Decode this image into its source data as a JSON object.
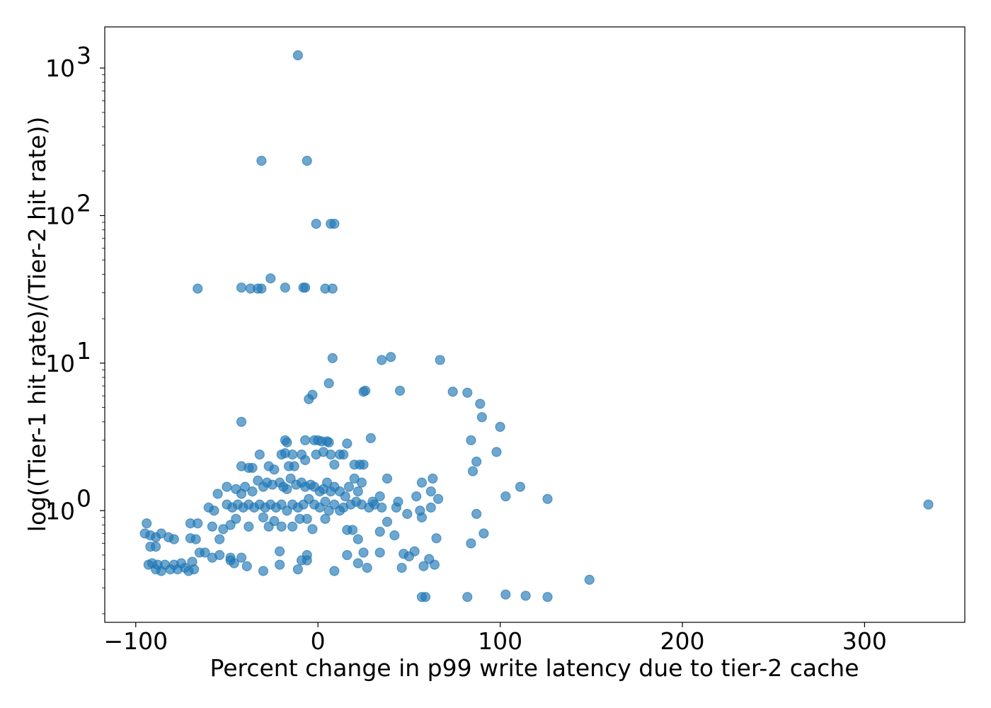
{
  "chart_data": {
    "type": "scatter",
    "xlabel": "Percent change in p99 write latency due to tier-2 cache",
    "ylabel": "log((Tier-1 hit rate)/(Tier-2 hit rate))",
    "xlim": [
      -117,
      355
    ],
    "ylim": [
      0.175,
      1900
    ],
    "yscale": "log",
    "grid": false,
    "marker_color": "#1f77b4",
    "marker_alpha": 0.65,
    "xticks": [
      {
        "value": -100,
        "label": "−100"
      },
      {
        "value": 0,
        "label": "0"
      },
      {
        "value": 100,
        "label": "100"
      },
      {
        "value": 200,
        "label": "200"
      },
      {
        "value": 300,
        "label": "300"
      }
    ],
    "yticks": [
      {
        "value": 1,
        "base": "10",
        "exp": "0"
      },
      {
        "value": 10,
        "base": "10",
        "exp": "1"
      },
      {
        "value": 100,
        "base": "10",
        "exp": "2"
      },
      {
        "value": 1000,
        "base": "10",
        "exp": "3"
      }
    ],
    "points": [
      [
        -11,
        1220
      ],
      [
        -31,
        235
      ],
      [
        -6,
        235
      ],
      [
        -1,
        88
      ],
      [
        7,
        88
      ],
      [
        9,
        88
      ],
      [
        -66,
        32
      ],
      [
        -42,
        32.5
      ],
      [
        -37,
        32
      ],
      [
        -33,
        32
      ],
      [
        -31,
        32
      ],
      [
        -18,
        32.5
      ],
      [
        -8,
        32.5
      ],
      [
        -7,
        32.5
      ],
      [
        4,
        32
      ],
      [
        8,
        32
      ],
      [
        -26,
        37.5
      ],
      [
        8,
        10.8
      ],
      [
        35,
        10.5
      ],
      [
        40,
        11
      ],
      [
        67,
        10.5
      ],
      [
        6,
        7.3
      ],
      [
        -5,
        5.7
      ],
      [
        -3,
        6.1
      ],
      [
        25,
        6.4
      ],
      [
        26,
        6.5
      ],
      [
        45,
        6.5
      ],
      [
        74,
        6.4
      ],
      [
        82,
        6.3
      ],
      [
        89,
        5.3
      ],
      [
        90,
        4.3
      ],
      [
        100,
        3.7
      ],
      [
        -42,
        4.0
      ],
      [
        29,
        3.1
      ],
      [
        84,
        3.0
      ],
      [
        98,
        2.5
      ],
      [
        87,
        2.15
      ],
      [
        85,
        1.85
      ],
      [
        -18,
        3.0
      ],
      [
        -17,
        2.9
      ],
      [
        -7,
        3.0
      ],
      [
        -2,
        3.0
      ],
      [
        0,
        3.0
      ],
      [
        2,
        2.95
      ],
      [
        5,
        2.95
      ],
      [
        6,
        2.9
      ],
      [
        16,
        2.85
      ],
      [
        -20,
        2.4
      ],
      [
        -18,
        2.45
      ],
      [
        -14,
        2.4
      ],
      [
        -9,
        2.4
      ],
      [
        -1,
        2.4
      ],
      [
        3,
        2.5
      ],
      [
        7,
        2.4
      ],
      [
        12,
        2.4
      ],
      [
        14,
        2.4
      ],
      [
        -32,
        2.4
      ],
      [
        -42,
        2.0
      ],
      [
        -38,
        1.95
      ],
      [
        -36,
        1.95
      ],
      [
        -27,
        2.0
      ],
      [
        -24,
        1.9
      ],
      [
        -16,
        2.0
      ],
      [
        -13,
        2.0
      ],
      [
        -7,
        2.2
      ],
      [
        9,
        2.05
      ],
      [
        20,
        2.05
      ],
      [
        23,
        2.05
      ],
      [
        25,
        2.05
      ],
      [
        -55,
        1.3
      ],
      [
        -50,
        1.45
      ],
      [
        -45,
        1.4
      ],
      [
        -42,
        1.3
      ],
      [
        -40,
        1.45
      ],
      [
        -36,
        1.35
      ],
      [
        -33,
        1.6
      ],
      [
        -30,
        1.45
      ],
      [
        -28,
        1.55
      ],
      [
        -25,
        1.5
      ],
      [
        -21,
        1.55
      ],
      [
        -19,
        1.45
      ],
      [
        -17,
        1.4
      ],
      [
        -15,
        1.65
      ],
      [
        -12,
        1.5
      ],
      [
        -9,
        1.55
      ],
      [
        -7,
        1.45
      ],
      [
        -4,
        1.5
      ],
      [
        -2,
        1.45
      ],
      [
        1,
        1.35
      ],
      [
        3,
        1.4
      ],
      [
        5,
        1.55
      ],
      [
        7,
        1.35
      ],
      [
        9,
        1.45
      ],
      [
        12,
        1.35
      ],
      [
        15,
        1.25
      ],
      [
        17,
        1.45
      ],
      [
        20,
        1.65
      ],
      [
        22,
        1.35
      ],
      [
        24,
        1.55
      ],
      [
        30,
        1.15
      ],
      [
        34,
        1.25
      ],
      [
        38,
        1.65
      ],
      [
        44,
        1.15
      ],
      [
        54,
        1.25
      ],
      [
        57,
        1.55
      ],
      [
        62,
        1.35
      ],
      [
        63,
        1.65
      ],
      [
        66,
        1.2
      ],
      [
        103,
        1.25
      ],
      [
        111,
        1.45
      ],
      [
        126,
        1.2
      ],
      [
        335,
        1.1
      ],
      [
        -60,
        1.05
      ],
      [
        -57,
        1.0
      ],
      [
        -50,
        1.1
      ],
      [
        -47,
        1.05
      ],
      [
        -44,
        1.1
      ],
      [
        -41,
        1.05
      ],
      [
        -38,
        1.1
      ],
      [
        -35,
        1.05
      ],
      [
        -32,
        1.1
      ],
      [
        -29,
        1.05
      ],
      [
        -26,
        1.1
      ],
      [
        -23,
        1.05
      ],
      [
        -20,
        1.1
      ],
      [
        -17,
        1.0
      ],
      [
        -14,
        1.1
      ],
      [
        -11,
        1.05
      ],
      [
        -8,
        1.1
      ],
      [
        -5,
        1.2
      ],
      [
        -2,
        1.1
      ],
      [
        1,
        1.05
      ],
      [
        4,
        1.15
      ],
      [
        6,
        1.0
      ],
      [
        9,
        1.1
      ],
      [
        12,
        1.0
      ],
      [
        14,
        1.05
      ],
      [
        18,
        1.1
      ],
      [
        21,
        1.15
      ],
      [
        24,
        1.1
      ],
      [
        28,
        1.05
      ],
      [
        31,
        1.1
      ],
      [
        35,
        1.05
      ],
      [
        43,
        1.05
      ],
      [
        49,
        0.95
      ],
      [
        56,
        1.0
      ],
      [
        62,
        1.05
      ],
      [
        87,
        0.95
      ],
      [
        -94,
        0.82
      ],
      [
        -95,
        0.7
      ],
      [
        -92,
        0.68
      ],
      [
        -89,
        0.66
      ],
      [
        -86,
        0.7
      ],
      [
        -82,
        0.66
      ],
      [
        -79,
        0.64
      ],
      [
        -70,
        0.82
      ],
      [
        -66,
        0.82
      ],
      [
        -70,
        0.65
      ],
      [
        -67,
        0.64
      ],
      [
        -58,
        0.78
      ],
      [
        -54,
        0.64
      ],
      [
        -52,
        0.75
      ],
      [
        -48,
        0.8
      ],
      [
        -45,
        0.88
      ],
      [
        -38,
        0.78
      ],
      [
        -30,
        0.9
      ],
      [
        -27,
        0.78
      ],
      [
        -24,
        0.85
      ],
      [
        -20,
        0.78
      ],
      [
        -14,
        0.78
      ],
      [
        -10,
        0.88
      ],
      [
        -6,
        0.88
      ],
      [
        -3,
        0.75
      ],
      [
        4,
        0.88
      ],
      [
        16,
        0.74
      ],
      [
        19,
        0.74
      ],
      [
        22,
        0.64
      ],
      [
        34,
        0.72
      ],
      [
        38,
        0.84
      ],
      [
        42,
        0.68
      ],
      [
        57,
        0.9
      ],
      [
        65,
        0.65
      ],
      [
        84,
        0.6
      ],
      [
        91,
        0.7
      ],
      [
        -92,
        0.57
      ],
      [
        -89,
        0.57
      ],
      [
        -65,
        0.52
      ],
      [
        -62,
        0.52
      ],
      [
        -58,
        0.48
      ],
      [
        -54,
        0.5
      ],
      [
        -48,
        0.48
      ],
      [
        -42,
        0.48
      ],
      [
        -21,
        0.53
      ],
      [
        -9,
        0.46
      ],
      [
        -6,
        0.5
      ],
      [
        16,
        0.5
      ],
      [
        25,
        0.52
      ],
      [
        34,
        0.52
      ],
      [
        47,
        0.51
      ],
      [
        50,
        0.49
      ],
      [
        53,
        0.53
      ],
      [
        61,
        0.47
      ],
      [
        -93,
        0.43
      ],
      [
        -91,
        0.44
      ],
      [
        -89,
        0.4
      ],
      [
        -88,
        0.43
      ],
      [
        -86,
        0.39
      ],
      [
        -84,
        0.43
      ],
      [
        -81,
        0.4
      ],
      [
        -79,
        0.43
      ],
      [
        -77,
        0.4
      ],
      [
        -75,
        0.44
      ],
      [
        -73,
        0.41
      ],
      [
        -71,
        0.39
      ],
      [
        -69,
        0.45
      ],
      [
        -68,
        0.4
      ],
      [
        -48,
        0.46
      ],
      [
        -46,
        0.44
      ],
      [
        -39,
        0.42
      ],
      [
        -30,
        0.39
      ],
      [
        -21,
        0.43
      ],
      [
        -11,
        0.4
      ],
      [
        -6,
        0.46
      ],
      [
        9,
        0.39
      ],
      [
        22,
        0.44
      ],
      [
        27,
        0.41
      ],
      [
        46,
        0.41
      ],
      [
        58,
        0.42
      ],
      [
        64,
        0.43
      ],
      [
        57,
        0.26
      ],
      [
        59,
        0.26
      ],
      [
        82,
        0.26
      ],
      [
        103,
        0.27
      ],
      [
        114,
        0.265
      ],
      [
        126,
        0.26
      ],
      [
        149,
        0.34
      ]
    ]
  }
}
